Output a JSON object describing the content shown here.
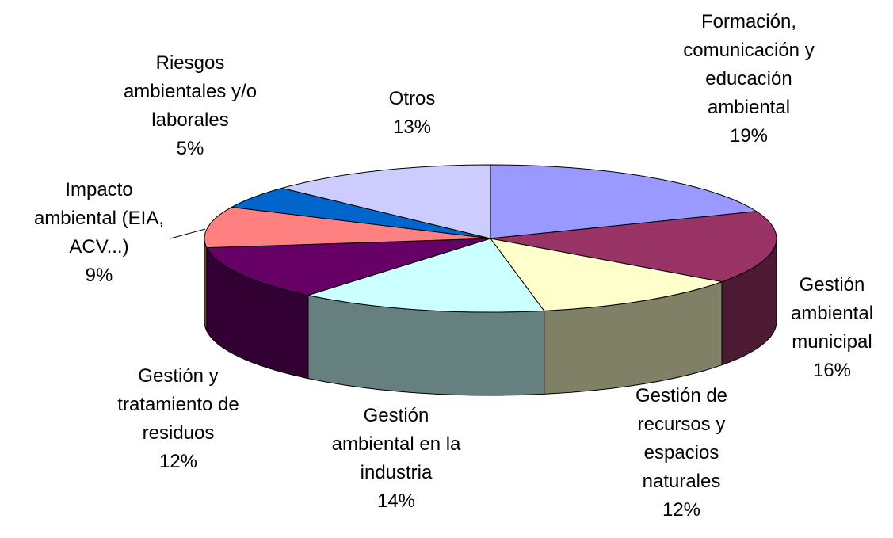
{
  "chart_data": {
    "type": "pie",
    "categories": [
      "Formación, comunicación y educación ambiental",
      "Gestión ambiental municipal",
      "Gestión de recursos y espacios naturales",
      "Gestión ambiental en la industria",
      "Gestión y tratamiento de residuos",
      "Impacto ambiental (EIA, ACV...)",
      "Riesgos ambientales y/o laborales",
      "Otros"
    ],
    "values": [
      19,
      16,
      12,
      14,
      12,
      9,
      5,
      13
    ],
    "value_labels": [
      "19%",
      "16%",
      "12%",
      "14%",
      "12%",
      "9%",
      "5%",
      "13%"
    ],
    "colors": [
      "#9999ff",
      "#993366",
      "#ffffcc",
      "#ccffff",
      "#660066",
      "#ff8080",
      "#0066cc",
      "#ccccff"
    ]
  }
}
